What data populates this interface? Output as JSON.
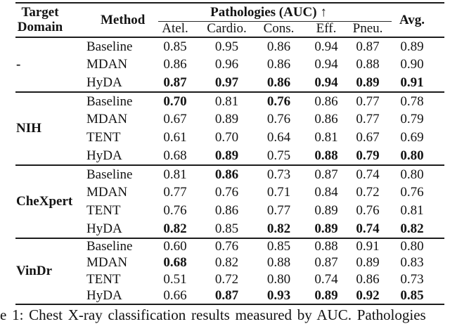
{
  "table": {
    "header": {
      "target_domain_line1": "Target",
      "target_domain_line2": "Domain",
      "method": "Method",
      "pathologies": "Pathologies (AUC) ↑",
      "subcols": [
        "Atel.",
        "Cardio.",
        "Cons.",
        "Eff.",
        "Pneu."
      ],
      "avg": "Avg."
    },
    "blocks": [
      {
        "domain": "-",
        "rows": [
          {
            "method": "Baseline",
            "values": [
              "0.85",
              "0.95",
              "0.86",
              "0.94",
              "0.87",
              "0.89"
            ],
            "bold": [
              false,
              false,
              false,
              false,
              false,
              false
            ]
          },
          {
            "method": "MDAN",
            "values": [
              "0.86",
              "0.96",
              "0.86",
              "0.94",
              "0.88",
              "0.90"
            ],
            "bold": [
              false,
              false,
              false,
              false,
              false,
              false
            ]
          },
          {
            "method": "HyDA",
            "values": [
              "0.87",
              "0.97",
              "0.86",
              "0.94",
              "0.89",
              "0.91"
            ],
            "bold": [
              true,
              true,
              true,
              true,
              true,
              true
            ]
          }
        ]
      },
      {
        "domain": "NIH",
        "rows": [
          {
            "method": "Baseline",
            "values": [
              "0.70",
              "0.81",
              "0.76",
              "0.86",
              "0.77",
              "0.78"
            ],
            "bold": [
              true,
              false,
              true,
              false,
              false,
              false
            ]
          },
          {
            "method": "MDAN",
            "values": [
              "0.67",
              "0.89",
              "0.76",
              "0.86",
              "0.77",
              "0.79"
            ],
            "bold": [
              false,
              false,
              false,
              false,
              false,
              false
            ]
          },
          {
            "method": "TENT",
            "values": [
              "0.61",
              "0.70",
              "0.64",
              "0.81",
              "0.67",
              "0.69"
            ],
            "bold": [
              false,
              false,
              false,
              false,
              false,
              false
            ]
          },
          {
            "method": "HyDA",
            "values": [
              "0.68",
              "0.89",
              "0.75",
              "0.88",
              "0.79",
              "0.80"
            ],
            "bold": [
              false,
              true,
              false,
              true,
              true,
              true
            ]
          }
        ]
      },
      {
        "domain": "CheXpert",
        "rows": [
          {
            "method": "Baseline",
            "values": [
              "0.81",
              "0.86",
              "0.73",
              "0.87",
              "0.74",
              "0.80"
            ],
            "bold": [
              false,
              true,
              false,
              false,
              false,
              false
            ]
          },
          {
            "method": "MDAN",
            "values": [
              "0.77",
              "0.76",
              "0.71",
              "0.84",
              "0.72",
              "0.76"
            ],
            "bold": [
              false,
              false,
              false,
              false,
              false,
              false
            ]
          },
          {
            "method": "TENT",
            "values": [
              "0.76",
              "0.86",
              "0.77",
              "0.89",
              "0.76",
              "0.81"
            ],
            "bold": [
              false,
              false,
              false,
              false,
              false,
              false
            ]
          },
          {
            "method": "HyDA",
            "values": [
              "0.82",
              "0.85",
              "0.82",
              "0.89",
              "0.74",
              "0.82"
            ],
            "bold": [
              true,
              false,
              true,
              true,
              true,
              true
            ]
          }
        ]
      },
      {
        "domain": "VinDr",
        "rows": [
          {
            "method": "Baseline",
            "values": [
              "0.60",
              "0.76",
              "0.85",
              "0.88",
              "0.91",
              "0.80"
            ],
            "bold": [
              false,
              false,
              false,
              false,
              false,
              false
            ]
          },
          {
            "method": "MDAN",
            "values": [
              "0.68",
              "0.82",
              "0.88",
              "0.87",
              "0.89",
              "0.83"
            ],
            "bold": [
              true,
              false,
              false,
              false,
              false,
              false
            ]
          },
          {
            "method": "TENT",
            "values": [
              "0.51",
              "0.72",
              "0.80",
              "0.74",
              "0.86",
              "0.73"
            ],
            "bold": [
              false,
              false,
              false,
              false,
              false,
              false
            ]
          },
          {
            "method": "HyDA",
            "values": [
              "0.66",
              "0.87",
              "0.93",
              "0.89",
              "0.92",
              "0.85"
            ],
            "bold": [
              false,
              true,
              true,
              true,
              true,
              true
            ]
          }
        ]
      }
    ]
  },
  "caption": "e 1: Chest X-ray classification results measured by AUC. Pathologies",
  "colors": {
    "text": "#141414",
    "rule": "#1c1c1c",
    "background": "#ffffff"
  }
}
